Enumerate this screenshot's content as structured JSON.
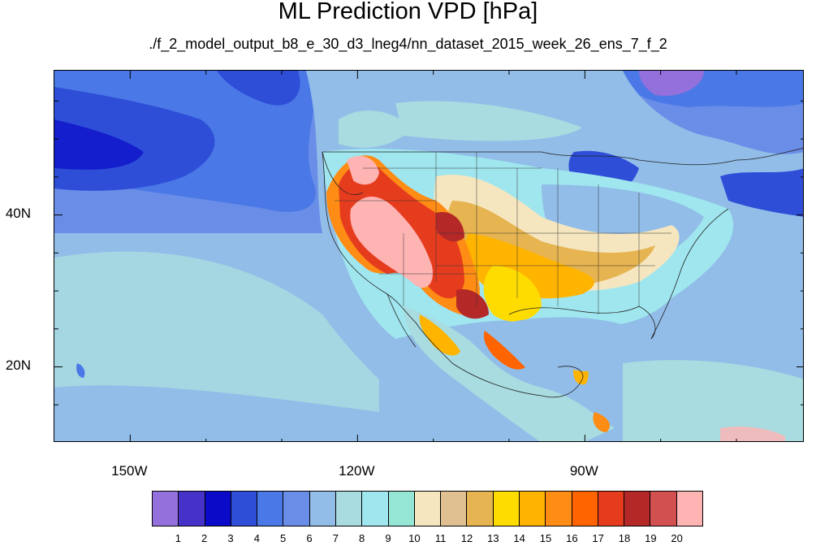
{
  "title": "ML Prediction VPD [hPa]",
  "subtitle": "./f_2_model_output_b8_e_30_d3_lneg4/nn_dataset_2015_week_26_ens_7_f_2",
  "map": {
    "projection": "cylindrical-equidistant",
    "lon_range": [
      -160,
      -61
    ],
    "lat_range": [
      10,
      59
    ],
    "lat_ticks": [
      {
        "value": 40,
        "label": "40N"
      },
      {
        "value": 20,
        "label": "20N"
      }
    ],
    "lon_ticks": [
      {
        "value": -150,
        "label": "150W"
      },
      {
        "value": -120,
        "label": "120W"
      },
      {
        "value": -90,
        "label": "90W"
      }
    ],
    "field": "VPD",
    "units": "hPa"
  },
  "colorbar": {
    "levels": [
      "1",
      "2",
      "3",
      "4",
      "5",
      "6",
      "7",
      "8",
      "9",
      "10",
      "11",
      "12",
      "13",
      "14",
      "15",
      "16",
      "17",
      "18",
      "19",
      "20"
    ],
    "colors": [
      "#9370db",
      "#4632c8",
      "#0a0ac8",
      "#2e4ed8",
      "#4a78e6",
      "#6a8ee8",
      "#91bde8",
      "#a8dce0",
      "#a0e6ee",
      "#96e6d6",
      "#f5e6c0",
      "#e0c090",
      "#e6b450",
      "#ffdc00",
      "#ffb400",
      "#ff8c14",
      "#ff6400",
      "#e63c1e",
      "#b42828",
      "#d25050",
      "#ffb4b4"
    ]
  }
}
